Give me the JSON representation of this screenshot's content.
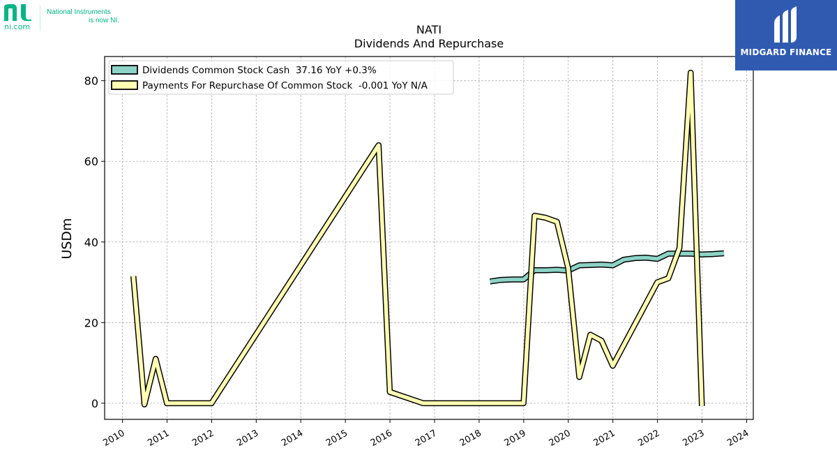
{
  "branding": {
    "left_domain": "ni.com",
    "left_tagline_line1": "National Instruments",
    "left_tagline_line2": "is now NI.",
    "right_name": "MIDGARD FINANCE",
    "accent": "#03b585",
    "panel_color": "#2f5ab0"
  },
  "chart_data": {
    "type": "line",
    "title": "NATI",
    "subtitle": "Dividends And Repurchase",
    "xlabel": "",
    "ylabel": "USDm",
    "xlim": [
      2009.6,
      2024.15
    ],
    "ylim": [
      -4,
      86
    ],
    "x_ticks": [
      "2010",
      "2011",
      "2012",
      "2013",
      "2014",
      "2015",
      "2016",
      "2017",
      "2018",
      "2019",
      "2020",
      "2021",
      "2022",
      "2023",
      "2024"
    ],
    "y_ticks": [
      0,
      20,
      40,
      60,
      80
    ],
    "grid": true,
    "legend_position": "top-left",
    "series": [
      {
        "name": "Dividends Common Stock Cash",
        "legend_suffix": "37.16 YoY +0.3%",
        "color": "#8dd3c7",
        "points": [
          [
            "2018-03-31",
            30.2
          ],
          [
            "2018-06-30",
            30.6
          ],
          [
            "2018-09-30",
            30.7
          ],
          [
            "2018-12-31",
            30.7
          ],
          [
            "2019-03-31",
            33.0
          ],
          [
            "2019-06-30",
            33.0
          ],
          [
            "2019-09-30",
            33.1
          ],
          [
            "2019-12-31",
            32.9
          ],
          [
            "2020-03-31",
            34.2
          ],
          [
            "2020-06-30",
            34.3
          ],
          [
            "2020-09-30",
            34.4
          ],
          [
            "2020-12-31",
            34.2
          ],
          [
            "2021-03-31",
            35.6
          ],
          [
            "2021-06-30",
            36.0
          ],
          [
            "2021-09-30",
            36.1
          ],
          [
            "2021-12-31",
            35.8
          ],
          [
            "2022-03-31",
            37.1
          ],
          [
            "2022-06-30",
            37.1
          ],
          [
            "2022-09-30",
            37.1
          ],
          [
            "2022-12-31",
            36.9
          ],
          [
            "2023-03-31",
            37.0
          ],
          [
            "2023-06-30",
            37.2
          ]
        ]
      },
      {
        "name": "Payments For Repurchase Of Common Stock",
        "legend_suffix": "-0.001 YoY N/A",
        "color": "#ffffb3",
        "points": [
          [
            "2010-03-31",
            31.5
          ],
          [
            "2010-06-30",
            -0.3
          ],
          [
            "2010-09-30",
            11.0
          ],
          [
            "2010-12-31",
            0.0
          ],
          [
            "2011-12-31",
            0.0
          ],
          [
            "2015-09-30",
            64.0
          ],
          [
            "2015-12-31",
            2.8
          ],
          [
            "2016-09-30",
            0.0
          ],
          [
            "2018-12-31",
            0.0
          ],
          [
            "2019-03-31",
            46.5
          ],
          [
            "2019-06-30",
            46.0
          ],
          [
            "2019-09-30",
            45.0
          ],
          [
            "2019-12-31",
            33.5
          ],
          [
            "2020-03-31",
            6.5
          ],
          [
            "2020-06-30",
            17.0
          ],
          [
            "2020-09-30",
            15.5
          ],
          [
            "2020-12-31",
            9.3
          ],
          [
            "2021-12-31",
            30.0
          ],
          [
            "2022-03-31",
            31.0
          ],
          [
            "2022-06-30",
            38.5
          ],
          [
            "2022-09-30",
            82.0
          ],
          [
            "2022-12-31",
            -0.7
          ]
        ]
      }
    ]
  }
}
